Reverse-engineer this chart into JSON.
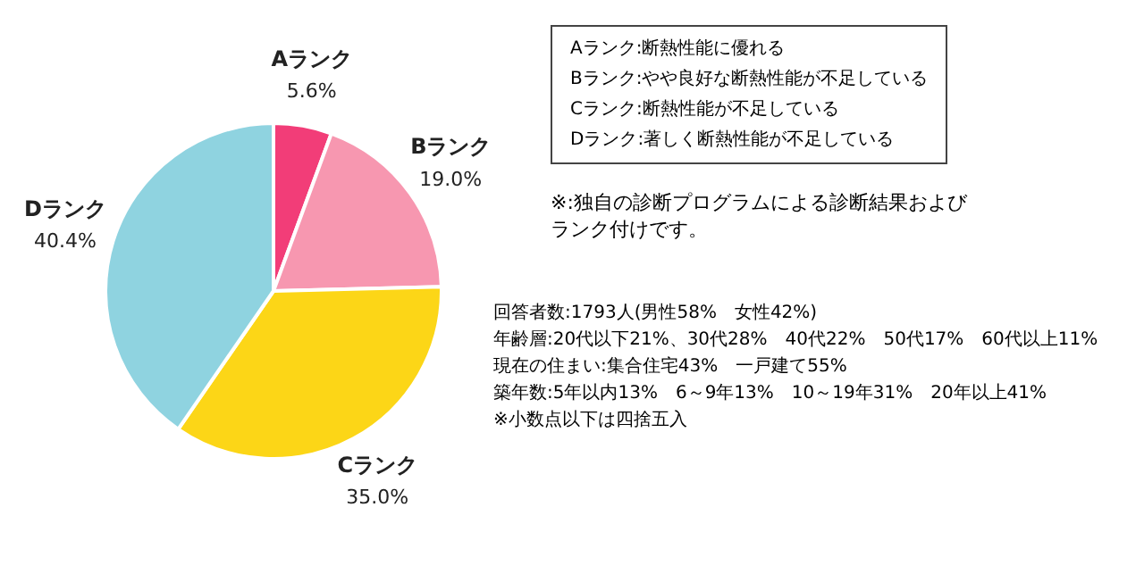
{
  "chart_data": {
    "type": "pie",
    "categories": [
      "Aランク",
      "Bランク",
      "Cランク",
      "Dランク"
    ],
    "values": [
      5.6,
      19.0,
      35.0,
      40.4
    ],
    "value_labels": [
      "5.6%",
      "19.0%",
      "35.0%",
      "40.4%"
    ],
    "colors": [
      "#f23d78",
      "#f797b0",
      "#fcd617",
      "#8fd3e0"
    ],
    "legend": false,
    "annotations": [
      "Aランク:断熱性能に優れる",
      "Bランク:やや良好な断熱性能が不足している",
      "Cランク:断熱性能が不足している",
      "Dランク:著しく断熱性能が不足している",
      "※:独自の診断プログラムによる診断結果およびランク付けです。",
      "回答者数:1793人(男性58%　女性42%)",
      "年齢層:20代以下21%、30代28%　40代22%　50代17%　60代以上11%",
      "現在の住まい:集合住宅43%　一戸建て55%",
      "築年数:5年以内13%　6～9年13%　10～19年31%　20年以上41%",
      "※小数点以下は四捨五入"
    ]
  }
}
